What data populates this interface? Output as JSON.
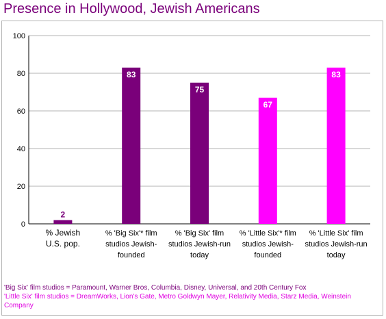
{
  "chart_data": {
    "type": "bar",
    "title": "Presence in Hollywood, Jewish Americans",
    "categories": [
      [
        "% Jewish",
        "U.S. pop."
      ],
      [
        "% 'Big Six'* film",
        "studios Jewish-",
        "founded"
      ],
      [
        "% 'Big Six' film",
        "studios Jewish-run",
        "today"
      ],
      [
        "% 'Little Six'* film",
        "studios Jewish-",
        "founded"
      ],
      [
        "% 'Little Six' film",
        "studios Jewish-run",
        "today"
      ]
    ],
    "values": [
      2,
      83,
      75,
      67,
      83
    ],
    "value_labels": [
      "2",
      "83",
      "75",
      "67",
      "83"
    ],
    "bar_colors": [
      "#7a007a",
      "#7a007a",
      "#7a007a",
      "#ff00ff",
      "#ff00ff"
    ],
    "ylim": [
      0,
      100
    ],
    "yticks": [
      0,
      20,
      40,
      60,
      80,
      100
    ],
    "grid": true
  },
  "notes": {
    "big_six": "'Big Six' film studios = Paramount, Warner Bros, Columbia, Disney, Universal, and 20th Century Fox",
    "little_six": "'Little Six' film studios = DreamWorks, Lion's Gate, Metro Goldwyn Mayer, Relativity Media, Starz Media, Weinstein Company"
  },
  "colors": {
    "title": "#7a007a",
    "grid": "#b3b3b3",
    "axis": "#000000"
  }
}
